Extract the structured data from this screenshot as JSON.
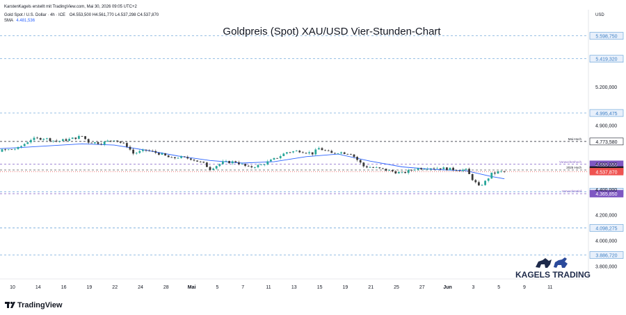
{
  "header": {
    "attribution": "KarstenKagels erstellt mit TradingView.com, Mai 30, 2026 09:05 UTC+2",
    "symbol_line": "Gold Spot / U.S. Dollar · 4h · ICE",
    "ohlc": "O4.553,500 H4.561,770 L4.537,298 C4.537,870",
    "sma_label": "SMA",
    "sma_value": "4.481,536"
  },
  "logo": {
    "brand": "KAGELS TRADING"
  },
  "footer": {
    "brand": "TradingView"
  },
  "colors": {
    "up": "#26a69a",
    "down": "#3a3a3a",
    "sma": "#2962ff",
    "grid_level": "#5b9bd5",
    "level_label": "#3d7fc4",
    "current": "#ef5350",
    "purple": "#7e57c2",
    "dark": "#131722"
  },
  "chart_data": {
    "type": "candlestick",
    "title": "Goldpreis (Spot) XAU/USD Vier-Stunden-Chart",
    "currency": "USD",
    "ylim": [
      3700,
      5700
    ],
    "y_ticks": [
      {
        "value": 5200,
        "label": "5.200,000"
      },
      {
        "value": 4900,
        "label": "4.900,000"
      },
      {
        "value": 4600,
        "label": "4.600,000"
      },
      {
        "value": 4400,
        "label": "4.400,000"
      },
      {
        "value": 4200,
        "label": "4.200,000"
      },
      {
        "value": 4000,
        "label": "4.000,000"
      },
      {
        "value": 3800,
        "label": "3.800,000"
      }
    ],
    "x_ticks": [
      {
        "day": 10,
        "label": "10"
      },
      {
        "day": 14,
        "label": "14"
      },
      {
        "day": 18,
        "label": "16"
      },
      {
        "day": 22,
        "label": "19"
      },
      {
        "day": 26,
        "label": "22"
      },
      {
        "day": 30,
        "label": "24"
      },
      {
        "day": 34,
        "label": "28"
      },
      {
        "day": 38,
        "label": "Mai"
      },
      {
        "day": 42,
        "label": "5"
      },
      {
        "day": 46,
        "label": "7"
      },
      {
        "day": 50,
        "label": "11"
      },
      {
        "day": 54,
        "label": "13"
      },
      {
        "day": 58,
        "label": "15"
      },
      {
        "day": 62,
        "label": "19"
      },
      {
        "day": 66,
        "label": "21"
      },
      {
        "day": 70,
        "label": "25"
      },
      {
        "day": 74,
        "label": "27"
      },
      {
        "day": 78,
        "label": "Jun"
      },
      {
        "day": 82,
        "label": "3"
      },
      {
        "day": 86,
        "label": "5"
      },
      {
        "day": 90,
        "label": "9"
      },
      {
        "day": 94,
        "label": "11"
      }
    ],
    "levels": [
      {
        "value": 5598.75,
        "label": "5.598,750",
        "style": "blue"
      },
      {
        "value": 5419.32,
        "label": "5.419,320",
        "style": "blue"
      },
      {
        "value": 4995.475,
        "label": "4.995,475",
        "style": "blue"
      },
      {
        "value": 4773.58,
        "label": "4.773,580",
        "style": "black",
        "note": "Mai-Hoch"
      },
      {
        "value": 4595.35,
        "label": "4.595,350",
        "style": "purple",
        "note": "Vorwochenhoch"
      },
      {
        "value": 4550.52,
        "label": "4.550,520",
        "style": "dark",
        "note": "2025 Hoch"
      },
      {
        "value": 4537.87,
        "label": "4.537,870",
        "style": "current"
      },
      {
        "value": 4381.484,
        "label": "4.381,484",
        "style": "blue"
      },
      {
        "value": 4365.85,
        "label": "4.365,850",
        "style": "purple",
        "note": "Vorwochentief"
      },
      {
        "value": 4098.275,
        "label": "4.098,275",
        "style": "blue"
      },
      {
        "value": 3886.72,
        "label": "3.886,720",
        "style": "blue"
      }
    ],
    "price_path": [
      [
        0,
        4700
      ],
      [
        2,
        4745
      ],
      [
        4,
        4735
      ],
      [
        6,
        4700
      ],
      [
        8,
        4705
      ],
      [
        10,
        4720
      ],
      [
        12,
        4790
      ],
      [
        14,
        4800
      ],
      [
        16,
        4775
      ],
      [
        18,
        4790
      ],
      [
        20,
        4815
      ],
      [
        21,
        4770
      ],
      [
        23,
        4760
      ],
      [
        25,
        4790
      ],
      [
        27,
        4740
      ],
      [
        28,
        4680
      ],
      [
        30,
        4705
      ],
      [
        32,
        4680
      ],
      [
        34,
        4640
      ],
      [
        35,
        4650
      ],
      [
        37,
        4640
      ],
      [
        39,
        4600
      ],
      [
        40,
        4560
      ],
      [
        42,
        4610
      ],
      [
        44,
        4615
      ],
      [
        46,
        4570
      ],
      [
        48,
        4590
      ],
      [
        50,
        4635
      ],
      [
        52,
        4690
      ],
      [
        54,
        4700
      ],
      [
        56,
        4680
      ],
      [
        57,
        4720
      ],
      [
        59,
        4680
      ],
      [
        60,
        4690
      ],
      [
        62,
        4680
      ],
      [
        64,
        4580
      ],
      [
        66,
        4565
      ],
      [
        68,
        4545
      ],
      [
        70,
        4525
      ],
      [
        72,
        4560
      ],
      [
        74,
        4570
      ],
      [
        76,
        4565
      ],
      [
        78,
        4555
      ],
      [
        80,
        4550
      ],
      [
        81,
        4480
      ],
      [
        82,
        4420
      ],
      [
        83,
        4460
      ],
      [
        84,
        4520
      ],
      [
        85,
        4535
      ],
      [
        86,
        4538
      ]
    ],
    "sma_path": [
      [
        0,
        4690
      ],
      [
        5,
        4712
      ],
      [
        10,
        4725
      ],
      [
        15,
        4740
      ],
      [
        20,
        4755
      ],
      [
        25,
        4745
      ],
      [
        30,
        4705
      ],
      [
        35,
        4660
      ],
      [
        40,
        4625
      ],
      [
        45,
        4605
      ],
      [
        50,
        4615
      ],
      [
        55,
        4655
      ],
      [
        60,
        4675
      ],
      [
        65,
        4620
      ],
      [
        70,
        4575
      ],
      [
        75,
        4555
      ],
      [
        80,
        4545
      ],
      [
        84,
        4500
      ],
      [
        86,
        4482
      ]
    ]
  }
}
